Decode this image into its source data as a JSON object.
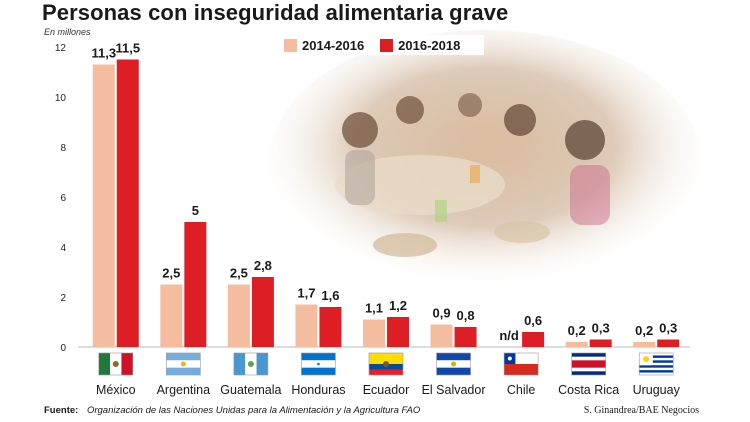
{
  "title": "Personas con inseguridad alimentaria grave",
  "unit_label": "En millones",
  "legend": [
    {
      "label": "2014-2016",
      "color": "#f5bd9f"
    },
    {
      "label": "2016-2018",
      "color": "#dd1e24"
    }
  ],
  "footer": {
    "label": "Fuente:",
    "source": "Organización de las Naciones Unidas para la Alimentación y la Agricultura FAO",
    "credit": "S. Ginandrea/BAE Negocios"
  },
  "background_icon": "photo-children-eating-icon",
  "chart_data": {
    "type": "bar",
    "title": "Personas con inseguridad alimentaria grave",
    "ylabel": "En millones",
    "xlabel": "",
    "ylim": [
      0,
      12
    ],
    "yticks": [
      0,
      2,
      4,
      6,
      8,
      10,
      12
    ],
    "grid": false,
    "legend_position": "top-center",
    "categories": [
      "México",
      "Argentina",
      "Guatemala",
      "Honduras",
      "Ecuador",
      "El Salvador",
      "Chile",
      "Costa Rica",
      "Uruguay"
    ],
    "flag_icons": [
      "mexico-flag-icon",
      "argentina-flag-icon",
      "guatemala-flag-icon",
      "honduras-flag-icon",
      "ecuador-flag-icon",
      "el-salvador-flag-icon",
      "chile-flag-icon",
      "costa-rica-flag-icon",
      "uruguay-flag-icon"
    ],
    "series": [
      {
        "name": "2014-2016",
        "color": "#f5bd9f",
        "values": [
          11.3,
          2.5,
          2.5,
          1.7,
          1.1,
          0.9,
          null,
          0.2,
          0.2
        ],
        "labels": [
          "11,3",
          "2,5",
          "2,5",
          "1,7",
          "1,1",
          "0,9",
          "n/d",
          "0,2",
          "0,2"
        ]
      },
      {
        "name": "2016-2018",
        "color": "#dd1e24",
        "values": [
          11.5,
          5,
          2.8,
          1.6,
          1.2,
          0.8,
          0.6,
          0.3,
          0.3
        ],
        "labels": [
          "11,5",
          "5",
          "2,8",
          "1,6",
          "1,2",
          "0,8",
          "0,6",
          "0,3",
          "0,3"
        ]
      }
    ]
  }
}
